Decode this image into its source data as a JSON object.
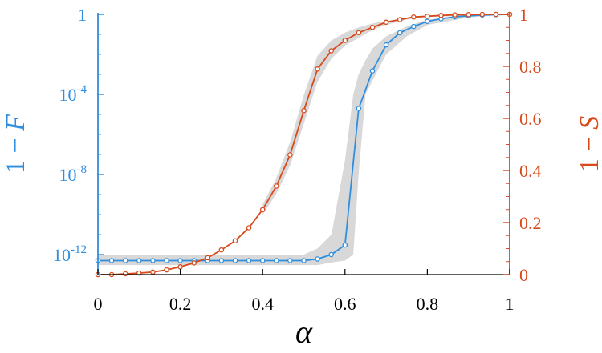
{
  "chart_data": {
    "type": "line",
    "xlabel": "α",
    "xlim": [
      0,
      1
    ],
    "x_ticks": [
      "0",
      "0.2",
      "0.4",
      "0.6",
      "0.8",
      "1"
    ],
    "left_axis": {
      "label": "1 − F",
      "label_parts": [
        "1 − ",
        "F"
      ],
      "scale": "log",
      "ylim": [
        1e-13,
        1
      ],
      "ticks": [
        {
          "value": 1,
          "base": "1",
          "exp": ""
        },
        {
          "value": 0.0001,
          "base": "10",
          "exp": "-4"
        },
        {
          "value": 1e-08,
          "base": "10",
          "exp": "-8"
        },
        {
          "value": 1e-12,
          "base": "10",
          "exp": "-12"
        }
      ],
      "color": "#2f8ee0"
    },
    "right_axis": {
      "label": "1 − S",
      "label_parts": [
        "1 − ",
        "S"
      ],
      "scale": "linear",
      "ylim": [
        0,
        1
      ],
      "ticks": [
        "0",
        "0.2",
        "0.4",
        "0.6",
        "0.8",
        "1"
      ],
      "color": "#d84a1b"
    },
    "x": [
      0,
      0.0333,
      0.0667,
      0.1,
      0.1333,
      0.1667,
      0.2,
      0.2333,
      0.2667,
      0.3,
      0.3333,
      0.3667,
      0.4,
      0.4333,
      0.4667,
      0.5,
      0.5333,
      0.5667,
      0.6,
      0.6333,
      0.6667,
      0.7,
      0.7333,
      0.7667,
      0.8,
      0.8333,
      0.8667,
      0.9,
      0.9333,
      0.9667,
      1
    ],
    "series": [
      {
        "axis": "left",
        "color": "#2f8ee0",
        "values": [
          5e-13,
          5e-13,
          5e-13,
          5e-13,
          5e-13,
          5e-13,
          5e-13,
          5e-13,
          5e-13,
          5e-13,
          5e-13,
          5e-13,
          5e-13,
          5e-13,
          5e-13,
          5e-13,
          6e-13,
          1e-12,
          3e-12,
          2e-05,
          0.0015,
          0.03,
          0.12,
          0.25,
          0.45,
          0.6,
          0.75,
          0.85,
          0.93,
          0.97,
          1
        ]
      },
      {
        "axis": "right",
        "color": "#d84a1b",
        "values": [
          0.0,
          0.0,
          0.003,
          0.006,
          0.01,
          0.018,
          0.03,
          0.045,
          0.065,
          0.095,
          0.13,
          0.18,
          0.25,
          0.34,
          0.46,
          0.63,
          0.79,
          0.86,
          0.9,
          0.93,
          0.95,
          0.97,
          0.98,
          0.99,
          0.993,
          0.996,
          0.998,
          0.999,
          1.0,
          1.0,
          1.0
        ]
      }
    ],
    "bands": [
      {
        "axis": "left",
        "color": "#d8d8d8",
        "x": [
          0,
          0.1,
          0.2,
          0.3,
          0.4,
          0.5,
          0.533,
          0.567,
          0.6,
          0.62,
          0.633,
          0.65,
          0.667,
          0.7,
          0.75,
          0.8,
          0.9,
          1
        ],
        "lower": [
          3e-13,
          3e-13,
          3e-13,
          3e-13,
          3e-13,
          3e-13,
          3e-13,
          4e-13,
          5e-13,
          1e-12,
          1e-08,
          0.0001,
          0.0005,
          0.01,
          0.08,
          0.3,
          0.7,
          1
        ],
        "upper": [
          1e-12,
          1e-12,
          1e-12,
          1e-12,
          1e-12,
          1e-12,
          2e-12,
          1e-11,
          5e-08,
          0.0001,
          0.001,
          0.005,
          0.02,
          0.08,
          0.25,
          0.55,
          0.9,
          1
        ]
      },
      {
        "axis": "right",
        "color": "#d8d8d8",
        "x": [
          0.4,
          0.433,
          0.467,
          0.5,
          0.533,
          0.567,
          0.6,
          0.633,
          0.667,
          0.7,
          0.75,
          0.8,
          0.9,
          1
        ],
        "lower": [
          0.23,
          0.31,
          0.42,
          0.58,
          0.74,
          0.83,
          0.88,
          0.91,
          0.94,
          0.96,
          0.98,
          0.99,
          0.995,
          1
        ],
        "upper": [
          0.27,
          0.37,
          0.51,
          0.69,
          0.84,
          0.9,
          0.93,
          0.95,
          0.965,
          0.975,
          0.985,
          0.995,
          1,
          1
        ]
      }
    ],
    "grid": false,
    "legend": "none"
  }
}
